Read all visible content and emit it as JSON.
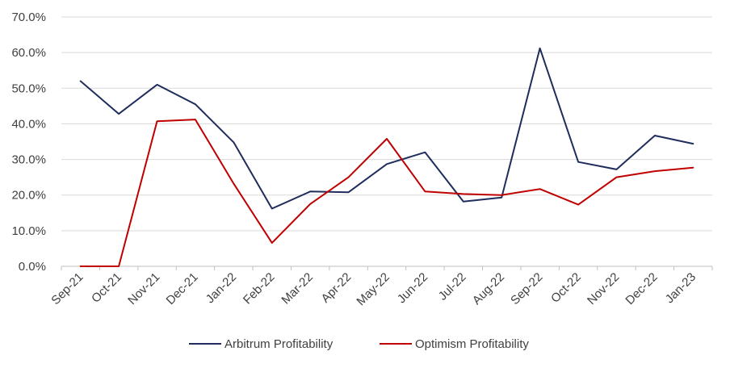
{
  "chart_data": {
    "type": "line",
    "title": "",
    "xlabel": "",
    "ylabel": "",
    "categories": [
      "Sep-21",
      "Oct-21",
      "Nov-21",
      "Dec-21",
      "Jan-22",
      "Feb-22",
      "Mar-22",
      "Apr-22",
      "May-22",
      "Jun-22",
      "Jul-22",
      "Aug-22",
      "Sep-22",
      "Oct-22",
      "Nov-22",
      "Dec-22",
      "Jan-23"
    ],
    "ylim": [
      0,
      70
    ],
    "yticks": [
      "0.0%",
      "10.0%",
      "20.0%",
      "30.0%",
      "40.0%",
      "50.0%",
      "60.0%",
      "70.0%"
    ],
    "grid": true,
    "legend_position": "bottom",
    "series": [
      {
        "name": "Arbitrum Profitability",
        "color": "#1f2d5c",
        "values": [
          52.0,
          42.8,
          51.0,
          45.5,
          34.8,
          16.2,
          21.0,
          20.8,
          28.7,
          32.0,
          18.2,
          19.3,
          61.2,
          29.3,
          27.2,
          36.7,
          34.4
        ]
      },
      {
        "name": "Optimism Profitability",
        "color": "#c00000",
        "values": [
          0.0,
          0.0,
          40.7,
          41.2,
          23.2,
          6.6,
          17.5,
          25.0,
          35.8,
          21.0,
          20.3,
          20.0,
          21.7,
          17.3,
          25.0,
          26.7,
          27.7
        ]
      }
    ]
  }
}
